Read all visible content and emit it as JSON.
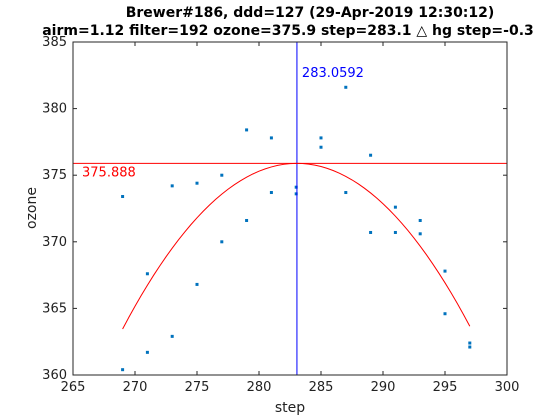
{
  "chart_data": {
    "type": "scatter",
    "title_line1": "Brewer#186, ddd=127 (29-Apr-2019 12:30:12)",
    "title_line2": "airm=1.12  filter=192 ozone=375.9   step=283.1 △ hg step=-0.3",
    "xlabel": "step",
    "ylabel": "ozone",
    "xlim": [
      265,
      300
    ],
    "ylim": [
      360,
      385
    ],
    "xticks": [
      265,
      270,
      275,
      280,
      285,
      290,
      295,
      300
    ],
    "yticks": [
      360,
      365,
      370,
      375,
      380,
      385
    ],
    "grid": false,
    "points": [
      {
        "x": 269,
        "y": 373.4
      },
      {
        "x": 269,
        "y": 360.4
      },
      {
        "x": 271,
        "y": 367.6
      },
      {
        "x": 271,
        "y": 361.7
      },
      {
        "x": 273,
        "y": 374.2
      },
      {
        "x": 273,
        "y": 362.9
      },
      {
        "x": 275,
        "y": 374.4
      },
      {
        "x": 275,
        "y": 366.8
      },
      {
        "x": 277,
        "y": 375.0
      },
      {
        "x": 277,
        "y": 370.0
      },
      {
        "x": 279,
        "y": 378.4
      },
      {
        "x": 279,
        "y": 371.6
      },
      {
        "x": 281,
        "y": 377.8
      },
      {
        "x": 281,
        "y": 373.7
      },
      {
        "x": 283,
        "y": 374.1
      },
      {
        "x": 283,
        "y": 373.6
      },
      {
        "x": 285,
        "y": 377.8
      },
      {
        "x": 285,
        "y": 377.1
      },
      {
        "x": 287,
        "y": 381.6
      },
      {
        "x": 287,
        "y": 373.7
      },
      {
        "x": 289,
        "y": 376.5
      },
      {
        "x": 289,
        "y": 370.7
      },
      {
        "x": 291,
        "y": 372.6
      },
      {
        "x": 291,
        "y": 370.7
      },
      {
        "x": 293,
        "y": 371.6
      },
      {
        "x": 293,
        "y": 370.6
      },
      {
        "x": 295,
        "y": 367.8
      },
      {
        "x": 295,
        "y": 364.6
      },
      {
        "x": 297,
        "y": 362.4
      },
      {
        "x": 297,
        "y": 362.1
      }
    ],
    "fit": {
      "x_range": [
        269,
        297
      ],
      "vertex_x": 283.0592,
      "vertex_y": 375.888,
      "curvature": -0.0629
    },
    "vline": {
      "x": 283.0592,
      "label": "283.0592"
    },
    "hline": {
      "y": 375.888,
      "label": "375.888"
    },
    "colors": {
      "points": "#0072bd",
      "fit": "#ff0000",
      "vline": "#0000ff",
      "hline": "#ff0000",
      "axes": "#262626"
    }
  }
}
